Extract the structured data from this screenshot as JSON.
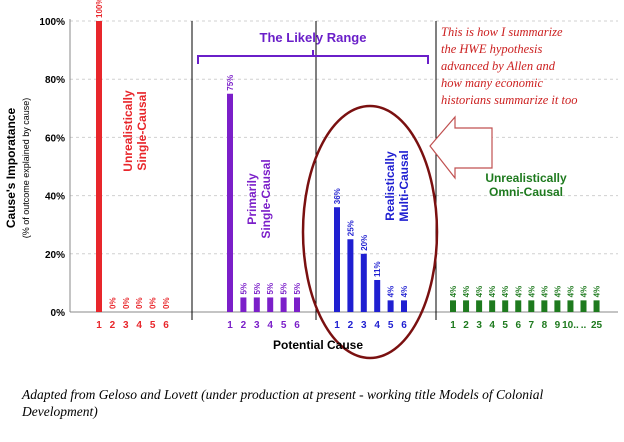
{
  "chart_data": {
    "type": "bar",
    "ylabel": "Cause's Imporatance",
    "ylabel_sub": "(% of outcome explained by cause)",
    "xlabel": "Potential Cause",
    "ylim": [
      0,
      100
    ],
    "yticks": [
      "0%",
      "20%",
      "40%",
      "60%",
      "80%",
      "100%"
    ],
    "grid": true,
    "groups": [
      {
        "name": "Unrealistically Single-Causal",
        "label_lines": [
          "Unrealistically",
          "Single-Causal"
        ],
        "color": "#e8262b",
        "categories": [
          "1",
          "2",
          "3",
          "4",
          "5",
          "6"
        ],
        "values": [
          100,
          0,
          0,
          0,
          0,
          0
        ],
        "data_labels": [
          "100%",
          "0%",
          "0%",
          "0%",
          "0%",
          "0%"
        ]
      },
      {
        "name": "Primarily Single-Causal",
        "label_lines": [
          "Primarily",
          "Single-Causal"
        ],
        "color": "#7b1fc9",
        "categories": [
          "1",
          "2",
          "3",
          "4",
          "5",
          "6"
        ],
        "values": [
          75,
          5,
          5,
          5,
          5,
          5
        ],
        "data_labels": [
          "75%",
          "5%",
          "5%",
          "5%",
          "5%",
          "5%"
        ]
      },
      {
        "name": "Realistically Multi-Causal",
        "label_lines": [
          "Realistically",
          "Multi-Causal"
        ],
        "color": "#1f1fd1",
        "categories": [
          "1",
          "2",
          "3",
          "4",
          "5",
          "6"
        ],
        "values": [
          36,
          25,
          20,
          11,
          4,
          4
        ],
        "data_labels": [
          "36%",
          "25%",
          "20%",
          "11%",
          "4%",
          "4%"
        ]
      },
      {
        "name": "Unrealistically Omni-Causal",
        "label_lines": [
          "Unrealistically",
          "Omni-Causal"
        ],
        "color": "#1e7a1e",
        "categories": [
          "1",
          "2",
          "3",
          "4",
          "5",
          "6",
          "7",
          "8",
          "9",
          "10",
          "",
          "25"
        ],
        "tick_labels": [
          "1",
          "2",
          "3",
          "4",
          "5",
          "6",
          "7",
          "8",
          "9",
          "10..",
          "..",
          "25"
        ],
        "values": [
          4,
          4,
          4,
          4,
          4,
          4,
          4,
          4,
          4,
          4,
          4,
          4
        ],
        "data_labels": [
          "4%",
          "4%",
          "4%",
          "4%",
          "4%",
          "4%",
          "4%",
          "4%",
          "4%",
          "4%",
          "4%",
          "4%"
        ]
      }
    ],
    "annotations": {
      "likely_range": "The Likely Range",
      "callout": [
        "This is how I summarize",
        "the HWE hypothesis",
        "advanced by Allen and",
        "how many economic",
        "historians summarize it too"
      ]
    }
  },
  "caption": "Adapted from Geloso and Lovett (under production at present - working title Models of Colonial Development)",
  "colors": {
    "likely_range": "#6a1fc9",
    "ellipse": "#7a1010",
    "callout_text": "#cc2020",
    "grid": "#d0d0d0"
  }
}
